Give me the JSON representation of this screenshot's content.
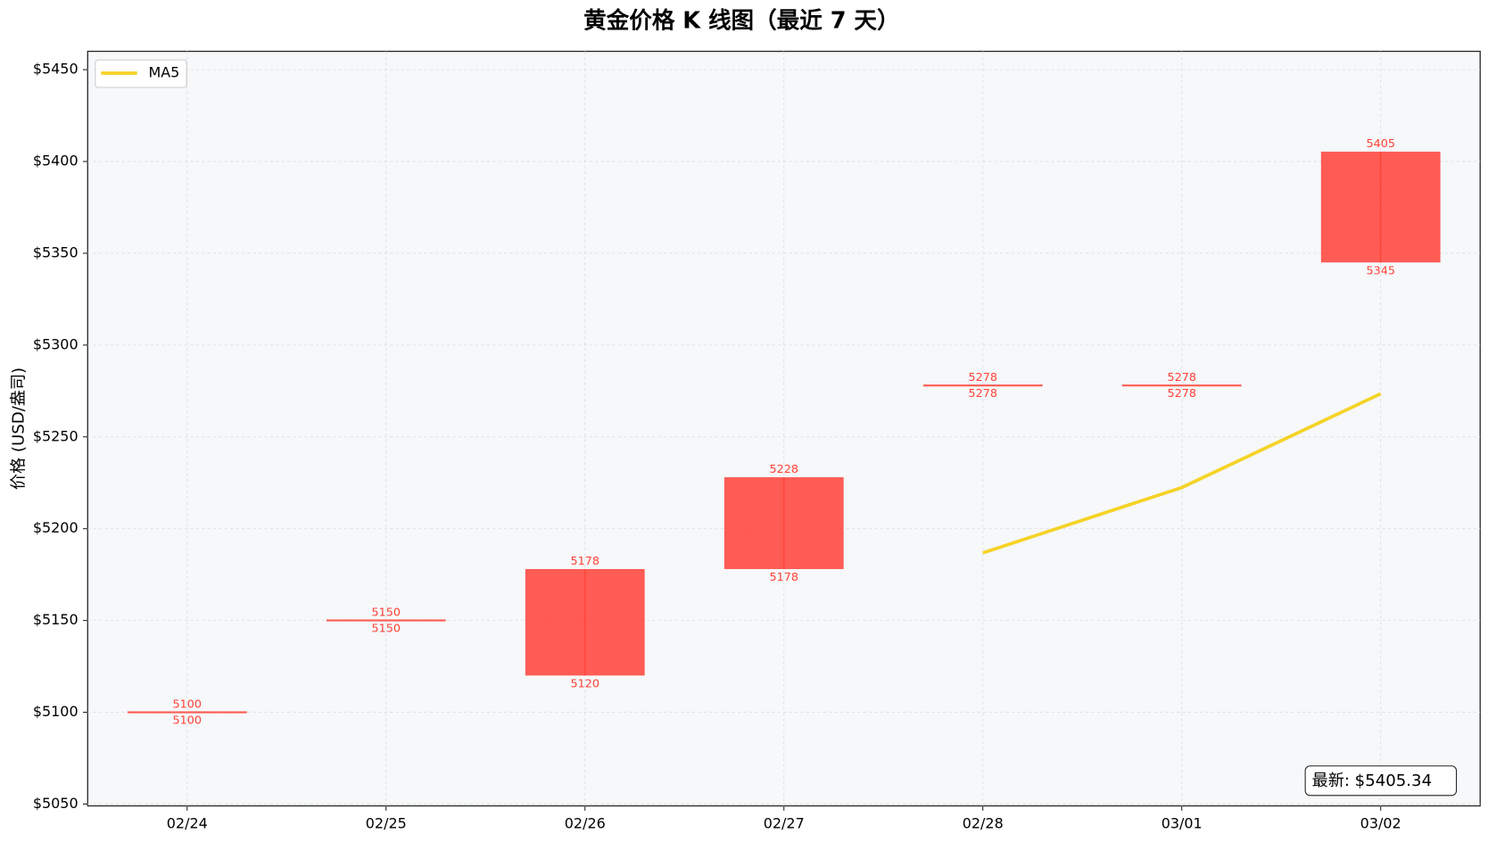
{
  "chart_data": {
    "type": "candlestick",
    "title": "黄金价格 K 线图（最近 7 天）",
    "y_label": "价格 (USD/盎司)",
    "categories": [
      "02/24",
      "02/25",
      "02/26",
      "02/27",
      "02/28",
      "03/01",
      "03/02"
    ],
    "open": [
      5100,
      5150,
      5120,
      5178,
      5278,
      5278,
      5345
    ],
    "close": [
      5100,
      5150,
      5178,
      5228,
      5278,
      5278,
      5405.34
    ],
    "close_labels": [
      "5100",
      "5150",
      "5178",
      "5228",
      "5278",
      "5278",
      "5405"
    ],
    "up_color": "#ff4136",
    "series": [
      {
        "name": "MA5",
        "color": "#f5d327",
        "values": [
          null,
          null,
          null,
          null,
          5186.8,
          5222.4,
          5273.5
        ]
      }
    ],
    "annotation": "最新: $5405.34",
    "ylim": [
      5049,
      5460
    ],
    "yticks": [
      {
        "value": 5050,
        "label": "$5050"
      },
      {
        "value": 5100,
        "label": "$5100"
      },
      {
        "value": 5150,
        "label": "$5150"
      },
      {
        "value": 5200,
        "label": "$5200"
      },
      {
        "value": 5250,
        "label": "$5250"
      },
      {
        "value": 5300,
        "label": "$5300"
      },
      {
        "value": 5350,
        "label": "$5350"
      },
      {
        "value": 5400,
        "label": "$5400"
      },
      {
        "value": 5450,
        "label": "$5450"
      }
    ],
    "grid": true,
    "legend": "upper left"
  }
}
